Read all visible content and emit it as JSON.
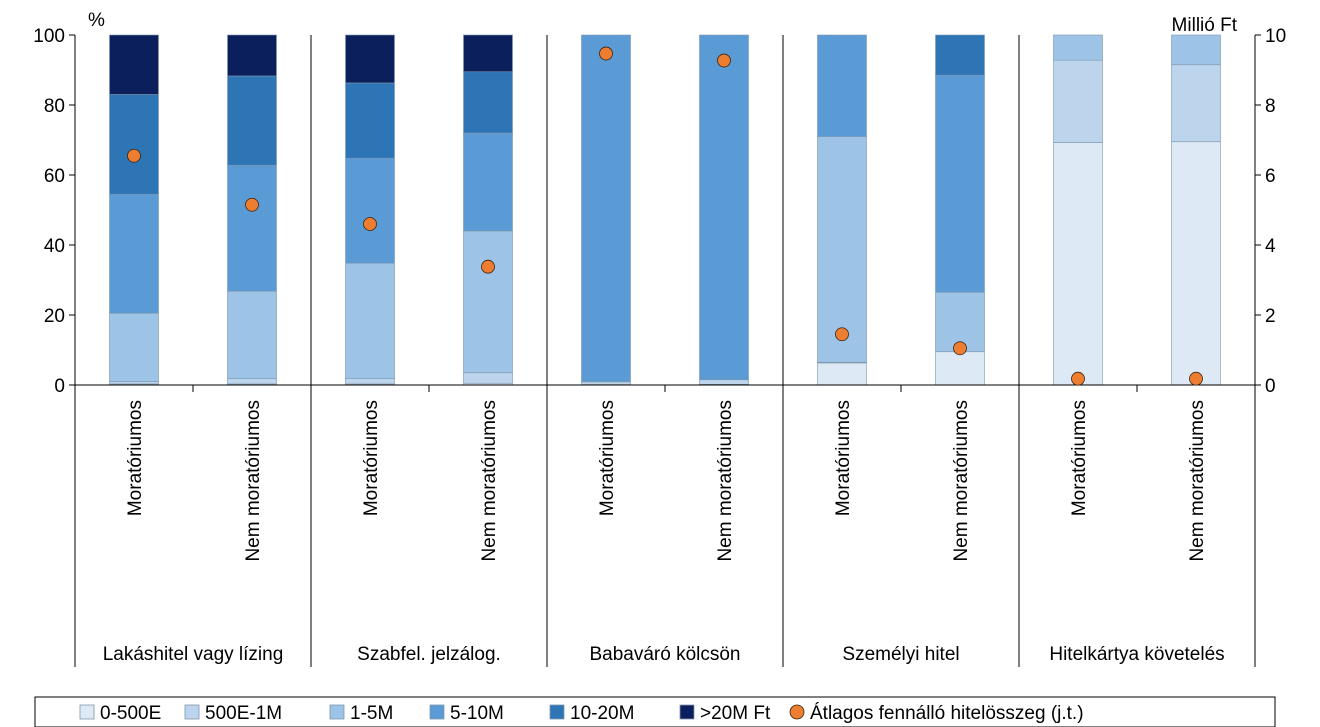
{
  "colors": {
    "0-500E": "#dde9f5",
    "500E-1M": "#bdd5ec",
    "1-5M": "#9dc3e6",
    "5-10M": "#5b9bd5",
    "10-20M": "#2e75b6",
    ">20M Ft": "#0a1f5c",
    "marker": "#ed7d31",
    "axis": "#000000",
    "segment_border": "#7f96ad"
  },
  "chart_data": {
    "type": "bar",
    "stacked": true,
    "left_axis": {
      "unit_label": "%",
      "ylim": [
        0,
        100
      ],
      "ticks": [
        "0",
        "20",
        "40",
        "60",
        "80",
        "100"
      ]
    },
    "right_axis": {
      "unit_label": "Millió Ft",
      "ylim": [
        0,
        10
      ],
      "ticks": [
        "0",
        "2",
        "4",
        "6",
        "8",
        "10"
      ]
    },
    "groups": [
      {
        "label": "Lakáshitel vagy lízing",
        "categories": [
          "Moratóriumos",
          "Nem moratóriumos"
        ]
      },
      {
        "label": "Szabfel. jelzálog.",
        "categories": [
          "Moratóriumos",
          "Nem moratóriumos"
        ]
      },
      {
        "label": "Babaváró kölcsön",
        "categories": [
          "Moratóriumos",
          "Nem moratóriumos"
        ]
      },
      {
        "label": "Személyi hitel",
        "categories": [
          "Moratóriumos",
          "Nem moratóriumos"
        ]
      },
      {
        "label": "Hitelkártya követelés",
        "categories": [
          "Moratóriumos",
          "Nem moratóriumos"
        ]
      }
    ],
    "series": [
      {
        "name": "0-500E",
        "values": [
          0.3,
          0.3,
          0.3,
          0.5,
          0.1,
          0.2,
          6.3,
          9.5,
          69.3,
          69.5
        ]
      },
      {
        "name": "500E-1M",
        "values": [
          0.7,
          1.5,
          1.5,
          3.0,
          0.8,
          1.3,
          0.2,
          0.0,
          23.5,
          22.0
        ]
      },
      {
        "name": "1-5M",
        "values": [
          19.5,
          25.0,
          33.0,
          40.5,
          0.1,
          0.0,
          64.5,
          17.0,
          7.2,
          8.5
        ]
      },
      {
        "name": "5-10M",
        "values": [
          34.0,
          36.0,
          30.0,
          28.0,
          99.0,
          98.5,
          29.0,
          62.0,
          0.0,
          0.0
        ]
      },
      {
        "name": "10-20M",
        "values": [
          28.5,
          25.5,
          21.5,
          17.5,
          0.0,
          0.0,
          0.0,
          11.5,
          0.0,
          0.0
        ]
      },
      {
        "name": ">20M Ft",
        "values": [
          17.0,
          11.7,
          13.7,
          10.5,
          0.0,
          0.0,
          0.0,
          0.0,
          0.0,
          0.0
        ]
      }
    ],
    "markers": {
      "name": "Átlagos fennálló hitelösszeg (j.t.)",
      "axis": "right",
      "values": [
        6.55,
        5.15,
        4.6,
        3.38,
        9.47,
        9.27,
        1.45,
        1.05,
        0.18,
        0.18
      ]
    },
    "legend": {
      "position": "bottom"
    }
  }
}
